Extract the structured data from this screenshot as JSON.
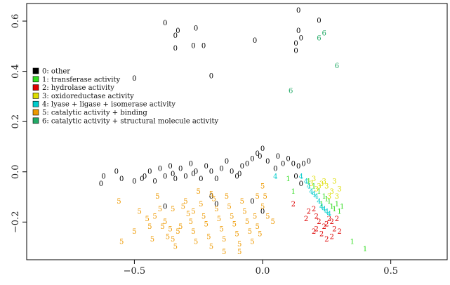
{
  "chart_data": {
    "type": "scatter",
    "title": "",
    "xlabel": "",
    "ylabel": "",
    "xlim": [
      -0.92,
      0.72
    ],
    "ylim": [
      -0.35,
      0.67
    ],
    "xticks": [
      -0.5,
      0.0,
      0.5
    ],
    "yticks": [
      -0.2,
      0.0,
      0.2,
      0.4,
      0.6
    ],
    "xtick_labels": [
      "−0.5",
      "0.0",
      "0.5"
    ],
    "ytick_labels": [
      "−0.2",
      "0.0",
      "0.2",
      "0.4",
      "0.6"
    ],
    "grid": false,
    "legend_position": "upper-left",
    "series": [
      {
        "name": "0: other",
        "label": "0",
        "color": "#000000",
        "points": [
          [
            0.14,
            0.64
          ],
          [
            0.22,
            0.6
          ],
          [
            0.14,
            0.56
          ],
          [
            0.15,
            0.53
          ],
          [
            0.13,
            0.51
          ],
          [
            0.13,
            0.48
          ],
          [
            -0.38,
            0.59
          ],
          [
            -0.33,
            0.56
          ],
          [
            -0.34,
            0.54
          ],
          [
            -0.26,
            0.57
          ],
          [
            -0.34,
            0.49
          ],
          [
            -0.23,
            0.5
          ],
          [
            -0.27,
            0.5
          ],
          [
            -0.03,
            0.52
          ],
          [
            -0.5,
            0.37
          ],
          [
            -0.2,
            0.38
          ],
          [
            -0.62,
            -0.02
          ],
          [
            -0.63,
            -0.05
          ],
          [
            -0.57,
            0.0
          ],
          [
            -0.5,
            -0.04
          ],
          [
            -0.47,
            -0.03
          ],
          [
            -0.44,
            0.0
          ],
          [
            -0.42,
            -0.04
          ],
          [
            -0.4,
            0.01
          ],
          [
            -0.38,
            -0.02
          ],
          [
            -0.36,
            0.02
          ],
          [
            -0.34,
            -0.03
          ],
          [
            -0.32,
            0.01
          ],
          [
            -0.3,
            -0.02
          ],
          [
            -0.28,
            0.03
          ],
          [
            -0.26,
            0.0
          ],
          [
            -0.24,
            -0.03
          ],
          [
            -0.22,
            0.02
          ],
          [
            -0.2,
            0.0
          ],
          [
            -0.18,
            -0.03
          ],
          [
            -0.16,
            0.01
          ],
          [
            -0.14,
            0.04
          ],
          [
            -0.12,
            0.0
          ],
          [
            -0.1,
            -0.02
          ],
          [
            -0.08,
            0.02
          ],
          [
            -0.06,
            0.03
          ],
          [
            -0.04,
            0.05
          ],
          [
            -0.02,
            0.07
          ],
          [
            0.0,
            0.09
          ],
          [
            -0.01,
            0.06
          ],
          [
            0.02,
            0.04
          ],
          [
            0.05,
            0.01
          ],
          [
            0.08,
            0.03
          ],
          [
            0.1,
            0.05
          ],
          [
            0.12,
            0.03
          ],
          [
            0.14,
            0.02
          ],
          [
            0.16,
            0.03
          ],
          [
            0.18,
            0.04
          ],
          [
            0.13,
            -0.02
          ],
          [
            0.15,
            -0.05
          ],
          [
            -0.2,
            -0.1
          ],
          [
            -0.18,
            -0.13
          ],
          [
            -0.38,
            -0.14
          ],
          [
            -0.04,
            -0.12
          ],
          [
            0.0,
            -0.16
          ],
          [
            -0.46,
            -0.02
          ],
          [
            -0.55,
            -0.03
          ],
          [
            -0.35,
            -0.01
          ],
          [
            -0.27,
            -0.01
          ],
          [
            -0.09,
            -0.01
          ],
          [
            0.06,
            0.06
          ]
        ]
      },
      {
        "name": "1: transferase activity",
        "label": "1",
        "color": "#33dd22",
        "points": [
          [
            0.1,
            -0.03
          ],
          [
            0.18,
            -0.04
          ],
          [
            0.2,
            -0.06
          ],
          [
            0.22,
            -0.08
          ],
          [
            0.24,
            -0.1
          ],
          [
            0.26,
            -0.12
          ],
          [
            0.27,
            -0.14
          ],
          [
            0.28,
            -0.15
          ],
          [
            0.29,
            -0.13
          ],
          [
            0.3,
            -0.16
          ],
          [
            0.25,
            -0.11
          ],
          [
            0.23,
            -0.13
          ],
          [
            0.31,
            -0.14
          ],
          [
            0.35,
            -0.28
          ],
          [
            0.4,
            -0.31
          ],
          [
            0.12,
            -0.08
          ]
        ]
      },
      {
        "name": "2: hydrolase activity",
        "label": "2",
        "color": "#dd0000",
        "points": [
          [
            0.12,
            -0.13
          ],
          [
            0.17,
            -0.19
          ],
          [
            0.2,
            -0.15
          ],
          [
            0.21,
            -0.18
          ],
          [
            0.22,
            -0.2
          ],
          [
            0.24,
            -0.22
          ],
          [
            0.25,
            -0.21
          ],
          [
            0.26,
            -0.19
          ],
          [
            0.27,
            -0.2
          ],
          [
            0.28,
            -0.23
          ],
          [
            0.23,
            -0.25
          ],
          [
            0.21,
            -0.23
          ],
          [
            0.25,
            -0.27
          ],
          [
            0.27,
            -0.26
          ],
          [
            0.3,
            -0.24
          ],
          [
            0.29,
            -0.19
          ],
          [
            0.2,
            -0.24
          ],
          [
            0.18,
            -0.16
          ]
        ]
      },
      {
        "name": "3: oxidoreductase activity",
        "label": "3",
        "color": "#dddd00",
        "points": [
          [
            0.2,
            -0.03
          ],
          [
            0.23,
            -0.05
          ],
          [
            0.25,
            -0.06
          ],
          [
            0.28,
            -0.04
          ],
          [
            0.3,
            -0.07
          ],
          [
            0.26,
            -0.1
          ],
          [
            0.24,
            -0.04
          ],
          [
            0.29,
            -0.1
          ],
          [
            0.27,
            -0.08
          ],
          [
            0.21,
            -0.07
          ],
          [
            0.19,
            -0.05
          ],
          [
            0.22,
            -0.06
          ]
        ]
      },
      {
        "name": "4: lyase + ligase + isomerase activity",
        "label": "4",
        "color": "#00cccc",
        "points": [
          [
            0.05,
            -0.02
          ],
          [
            0.15,
            -0.02
          ],
          [
            0.17,
            -0.04
          ],
          [
            0.18,
            -0.06
          ],
          [
            0.19,
            -0.08
          ],
          [
            0.2,
            -0.09
          ],
          [
            0.21,
            -0.1
          ],
          [
            0.22,
            -0.12
          ],
          [
            0.23,
            -0.14
          ],
          [
            0.24,
            -0.15
          ],
          [
            0.25,
            -0.16
          ],
          [
            0.26,
            -0.17
          ]
        ]
      },
      {
        "name": "5: catalytic activity + binding",
        "label": "5",
        "color": "#ee9900",
        "points": [
          [
            -0.56,
            -0.12
          ],
          [
            -0.55,
            -0.28
          ],
          [
            -0.5,
            -0.24
          ],
          [
            -0.48,
            -0.16
          ],
          [
            -0.45,
            -0.19
          ],
          [
            -0.44,
            -0.22
          ],
          [
            -0.42,
            -0.18
          ],
          [
            -0.41,
            -0.1
          ],
          [
            -0.4,
            -0.15
          ],
          [
            -0.39,
            -0.22
          ],
          [
            -0.38,
            -0.2
          ],
          [
            -0.37,
            -0.26
          ],
          [
            -0.36,
            -0.23
          ],
          [
            -0.35,
            -0.27
          ],
          [
            -0.34,
            -0.3
          ],
          [
            -0.33,
            -0.24
          ],
          [
            -0.32,
            -0.22
          ],
          [
            -0.31,
            -0.14
          ],
          [
            -0.3,
            -0.12
          ],
          [
            -0.29,
            -0.17
          ],
          [
            -0.28,
            -0.2
          ],
          [
            -0.27,
            -0.24
          ],
          [
            -0.26,
            -0.28
          ],
          [
            -0.25,
            -0.08
          ],
          [
            -0.24,
            -0.13
          ],
          [
            -0.23,
            -0.18
          ],
          [
            -0.22,
            -0.21
          ],
          [
            -0.21,
            -0.26
          ],
          [
            -0.2,
            -0.3
          ],
          [
            -0.19,
            -0.11
          ],
          [
            -0.18,
            -0.15
          ],
          [
            -0.17,
            -0.19
          ],
          [
            -0.16,
            -0.23
          ],
          [
            -0.15,
            -0.27
          ],
          [
            -0.14,
            -0.1
          ],
          [
            -0.13,
            -0.14
          ],
          [
            -0.12,
            -0.18
          ],
          [
            -0.11,
            -0.21
          ],
          [
            -0.1,
            -0.25
          ],
          [
            -0.09,
            -0.29
          ],
          [
            -0.08,
            -0.12
          ],
          [
            -0.07,
            -0.16
          ],
          [
            -0.06,
            -0.2
          ],
          [
            -0.05,
            -0.24
          ],
          [
            -0.04,
            -0.28
          ],
          [
            -0.03,
            -0.18
          ],
          [
            -0.02,
            -0.22
          ],
          [
            -0.01,
            -0.25
          ],
          [
            0.0,
            -0.14
          ],
          [
            0.01,
            -0.1
          ],
          [
            0.02,
            -0.18
          ],
          [
            0.04,
            -0.2
          ],
          [
            -0.09,
            -0.32
          ],
          [
            -0.15,
            -0.32
          ],
          [
            -0.27,
            -0.16
          ],
          [
            -0.2,
            -0.09
          ],
          [
            -0.35,
            -0.15
          ],
          [
            0.0,
            -0.06
          ],
          [
            -0.02,
            -0.1
          ],
          [
            -0.43,
            -0.27
          ]
        ]
      },
      {
        "name": "6: catalytic activity + structural molecule activity",
        "label": "6",
        "color": "#22aa66",
        "points": [
          [
            0.24,
            0.55
          ],
          [
            0.22,
            0.53
          ],
          [
            0.29,
            0.42
          ],
          [
            0.11,
            0.32
          ]
        ]
      }
    ]
  }
}
